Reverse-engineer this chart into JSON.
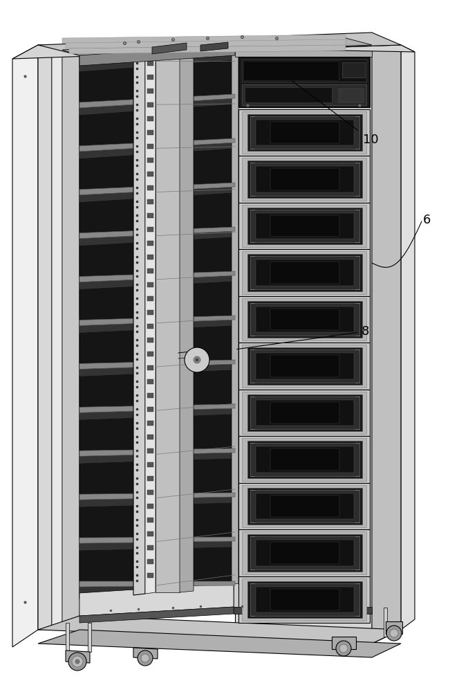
{
  "bg_color": "#ffffff",
  "lc": "#000000",
  "lc_gray": "#666666",
  "dark": "#111111",
  "mid": "#555555",
  "lgray": "#c0c0c0",
  "llgray": "#e0e0e0",
  "dgray": "#888888",
  "label_10": "10",
  "label_6": "6",
  "label_8": "8",
  "label_fs": 13,
  "figsize": [
    6.51,
    10.0
  ],
  "dpi": 100
}
